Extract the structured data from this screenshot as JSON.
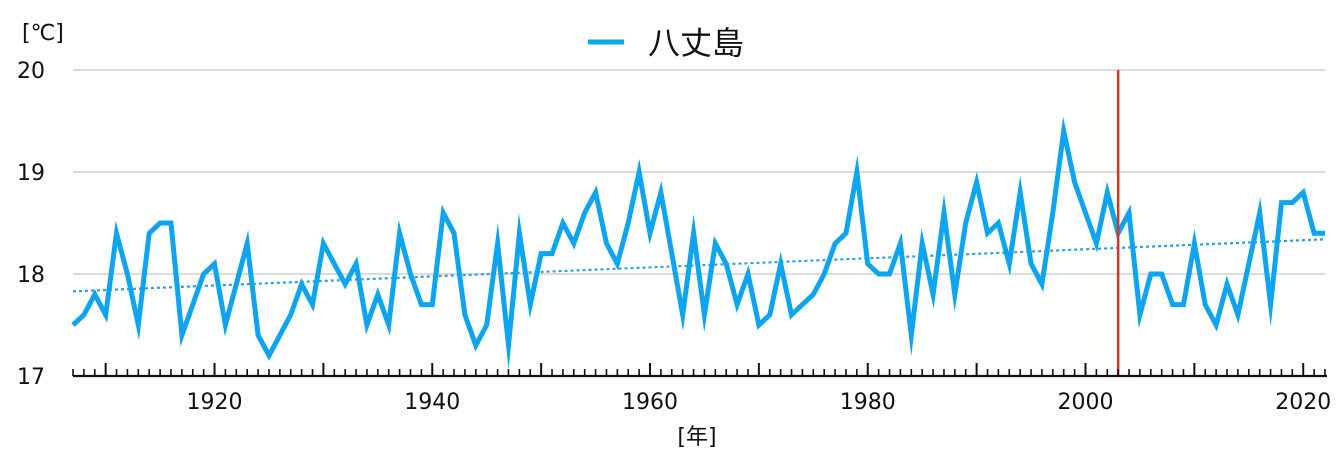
{
  "chart_data": {
    "type": "line",
    "ylabel": "[℃]",
    "xlabel": "[年]",
    "ylim": [
      17,
      20
    ],
    "xlim": [
      1907,
      2022
    ],
    "yticks": [
      17,
      18,
      19,
      20
    ],
    "xticks": [
      1920,
      1940,
      1960,
      1980,
      2000,
      2020
    ],
    "grid": "horizontal",
    "legend_position": "top-center",
    "series": [
      {
        "name": "八丈島",
        "color": "#0ea5f0",
        "x": [
          1907,
          1908,
          1909,
          1910,
          1911,
          1912,
          1913,
          1914,
          1915,
          1916,
          1917,
          1918,
          1919,
          1920,
          1921,
          1922,
          1923,
          1924,
          1925,
          1926,
          1927,
          1928,
          1929,
          1930,
          1931,
          1932,
          1933,
          1934,
          1935,
          1936,
          1937,
          1938,
          1939,
          1940,
          1941,
          1942,
          1943,
          1944,
          1945,
          1946,
          1947,
          1948,
          1949,
          1950,
          1951,
          1952,
          1953,
          1954,
          1955,
          1956,
          1957,
          1958,
          1959,
          1960,
          1961,
          1962,
          1963,
          1964,
          1965,
          1966,
          1967,
          1968,
          1969,
          1970,
          1971,
          1972,
          1973,
          1974,
          1975,
          1976,
          1977,
          1978,
          1979,
          1980,
          1981,
          1982,
          1983,
          1984,
          1985,
          1986,
          1987,
          1988,
          1989,
          1990,
          1991,
          1992,
          1993,
          1994,
          1995,
          1996,
          1997,
          1998,
          1999,
          2000,
          2001,
          2002,
          2003,
          2004,
          2005,
          2006,
          2007,
          2008,
          2009,
          2010,
          2011,
          2012,
          2013,
          2014,
          2015,
          2016,
          2017,
          2018,
          2019,
          2020,
          2021,
          2022
        ],
        "values": [
          17.5,
          17.6,
          17.8,
          17.6,
          18.4,
          18.0,
          17.5,
          18.4,
          18.5,
          18.5,
          17.4,
          17.7,
          18.0,
          18.1,
          17.5,
          17.9,
          18.3,
          17.4,
          17.2,
          17.4,
          17.6,
          17.9,
          17.7,
          18.3,
          18.1,
          17.9,
          18.1,
          17.5,
          17.8,
          17.5,
          18.4,
          18.0,
          17.7,
          17.7,
          18.6,
          18.4,
          17.6,
          17.3,
          17.5,
          18.3,
          17.3,
          18.4,
          17.7,
          18.2,
          18.2,
          18.5,
          18.3,
          18.6,
          18.8,
          18.3,
          18.1,
          18.5,
          19.0,
          18.4,
          18.8,
          18.2,
          17.6,
          18.4,
          17.6,
          18.3,
          18.1,
          17.7,
          18.0,
          17.5,
          17.6,
          18.1,
          17.6,
          17.7,
          17.8,
          18.0,
          18.3,
          18.4,
          19.0,
          18.1,
          18.0,
          18.0,
          18.3,
          17.4,
          18.3,
          17.8,
          18.6,
          17.8,
          18.5,
          18.9,
          18.4,
          18.5,
          18.1,
          18.8,
          18.1,
          17.9,
          18.6,
          19.4,
          18.9,
          18.6,
          18.3,
          18.8,
          18.4,
          18.6,
          17.6,
          18.0,
          18.0,
          17.7,
          17.7,
          18.3,
          17.7,
          17.5,
          17.9,
          17.6,
          18.1,
          18.6,
          17.7,
          18.7,
          18.7,
          18.8,
          18.4,
          18.4
        ]
      }
    ],
    "trendline": {
      "style": "dotted",
      "color": "#2aa0e0",
      "from": [
        1907,
        17.83
      ],
      "to": [
        2022,
        18.34
      ]
    },
    "reference_line": {
      "x": 2003,
      "color": "#d9321f"
    }
  }
}
